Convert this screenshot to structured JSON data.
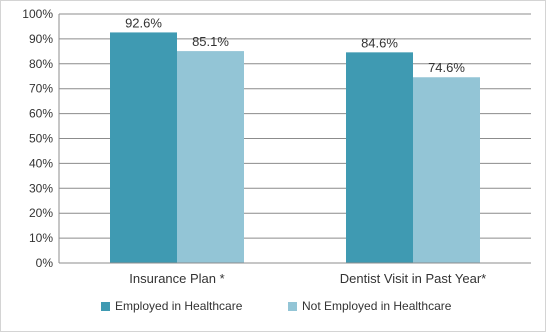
{
  "chart_data": {
    "type": "bar",
    "categories": [
      "Insurance Plan *",
      "Dentist Visit in Past Year*"
    ],
    "series": [
      {
        "name": "Employed in Healthcare",
        "values": [
          92.6,
          84.6
        ],
        "labels": [
          "92.6%",
          "84.6%"
        ],
        "color": "#3f9ab2"
      },
      {
        "name": "Not Employed in Healthcare",
        "values": [
          85.1,
          74.6
        ],
        "labels": [
          "85.1%",
          "74.6%"
        ],
        "color": "#93c5d6"
      }
    ],
    "yticks": [
      0,
      10,
      20,
      30,
      40,
      50,
      60,
      70,
      80,
      90,
      100
    ],
    "ytick_labels": [
      "0%",
      "10%",
      "20%",
      "30%",
      "40%",
      "50%",
      "60%",
      "70%",
      "80%",
      "90%",
      "100%"
    ],
    "ylim": [
      0,
      100
    ],
    "grid": true,
    "legend_position": "bottom"
  }
}
